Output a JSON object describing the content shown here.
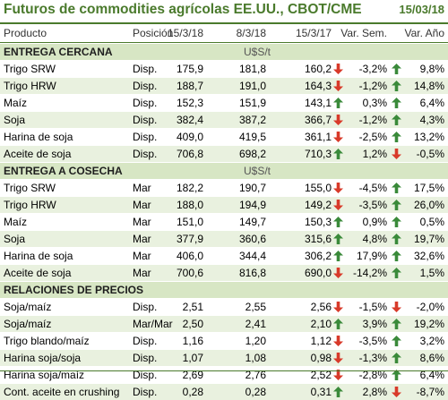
{
  "title": "Futuros de commodities agrícolas EE.UU., CBOT/CME",
  "date": "15/03/18",
  "columns": [
    "Producto",
    "Posición",
    "15/3/18",
    "8/3/18",
    "15/3/17",
    "Var. Sem.",
    "Var. Año"
  ],
  "colors": {
    "accent": "#4a7a2c",
    "up": "#3a8a3a",
    "down": "#d83a2a",
    "section_bg": "#d7e6c4",
    "alt_bg": "#e9f1df"
  },
  "sections": [
    {
      "label": "ENTREGA CERCANA",
      "unit": "U$S/t",
      "rows": [
        {
          "name": "Trigo SRW",
          "pos": "Disp.",
          "v1": "175,9",
          "v2": "181,8",
          "v3": "160,2",
          "a1": "down",
          "v4": "-3,2%",
          "a2": "up",
          "v5": "9,8%"
        },
        {
          "name": "Trigo HRW",
          "pos": "Disp.",
          "v1": "188,7",
          "v2": "191,0",
          "v3": "164,3",
          "a1": "down",
          "v4": "-1,2%",
          "a2": "up",
          "v5": "14,8%"
        },
        {
          "name": "Maíz",
          "pos": "Disp.",
          "v1": "152,3",
          "v2": "151,9",
          "v3": "143,1",
          "a1": "up",
          "v4": "0,3%",
          "a2": "up",
          "v5": "6,4%"
        },
        {
          "name": "Soja",
          "pos": "Disp.",
          "v1": "382,4",
          "v2": "387,2",
          "v3": "366,7",
          "a1": "down",
          "v4": "-1,2%",
          "a2": "up",
          "v5": "4,3%"
        },
        {
          "name": "Harina de soja",
          "pos": "Disp.",
          "v1": "409,0",
          "v2": "419,5",
          "v3": "361,1",
          "a1": "down",
          "v4": "-2,5%",
          "a2": "up",
          "v5": "13,2%"
        },
        {
          "name": "Aceite de soja",
          "pos": "Disp.",
          "v1": "706,8",
          "v2": "698,2",
          "v3": "710,3",
          "a1": "up",
          "v4": "1,2%",
          "a2": "down",
          "v5": "-0,5%"
        }
      ]
    },
    {
      "label": "ENTREGA A COSECHA",
      "unit": "U$S/t",
      "rows": [
        {
          "name": "Trigo SRW",
          "pos": "Mar",
          "v1": "182,2",
          "v2": "190,7",
          "v3": "155,0",
          "a1": "down",
          "v4": "-4,5%",
          "a2": "up",
          "v5": "17,5%"
        },
        {
          "name": "Trigo HRW",
          "pos": "Mar",
          "v1": "188,0",
          "v2": "194,9",
          "v3": "149,2",
          "a1": "down",
          "v4": "-3,5%",
          "a2": "up",
          "v5": "26,0%"
        },
        {
          "name": "Maíz",
          "pos": "Mar",
          "v1": "151,0",
          "v2": "149,7",
          "v3": "150,3",
          "a1": "up",
          "v4": "0,9%",
          "a2": "up",
          "v5": "0,5%"
        },
        {
          "name": "Soja",
          "pos": "Mar",
          "v1": "377,9",
          "v2": "360,6",
          "v3": "315,6",
          "a1": "up",
          "v4": "4,8%",
          "a2": "up",
          "v5": "19,7%"
        },
        {
          "name": "Harina de soja",
          "pos": "Mar",
          "v1": "406,0",
          "v2": "344,4",
          "v3": "306,2",
          "a1": "up",
          "v4": "17,9%",
          "a2": "up",
          "v5": "32,6%"
        },
        {
          "name": "Aceite de soja",
          "pos": "Mar",
          "v1": "700,6",
          "v2": "816,8",
          "v3": "690,0",
          "a1": "down",
          "v4": "-14,2%",
          "a2": "up",
          "v5": "1,5%"
        }
      ]
    },
    {
      "label": "RELACIONES DE PRECIOS",
      "unit": "",
      "rows": [
        {
          "name": "Soja/maíz",
          "pos": "Disp.",
          "v1": "2,51",
          "v2": "2,55",
          "v3": "2,56",
          "a1": "down",
          "v4": "-1,5%",
          "a2": "down",
          "v5": "-2,0%"
        },
        {
          "name": "Soja/maíz",
          "pos": "Mar/Mar",
          "v1": "2,50",
          "v2": "2,41",
          "v3": "2,10",
          "a1": "up",
          "v4": "3,9%",
          "a2": "up",
          "v5": "19,2%"
        },
        {
          "name": "Trigo blando/maíz",
          "pos": "Disp.",
          "v1": "1,16",
          "v2": "1,20",
          "v3": "1,12",
          "a1": "down",
          "v4": "-3,5%",
          "a2": "up",
          "v5": "3,2%"
        },
        {
          "name": "Harina soja/soja",
          "pos": "Disp.",
          "v1": "1,07",
          "v2": "1,08",
          "v3": "0,98",
          "a1": "down",
          "v4": "-1,3%",
          "a2": "up",
          "v5": "8,6%"
        },
        {
          "name": "Harina soja/maíz",
          "pos": "Disp.",
          "v1": "2,69",
          "v2": "2,76",
          "v3": "2,52",
          "a1": "down",
          "v4": "-2,8%",
          "a2": "up",
          "v5": "6,4%"
        },
        {
          "name": "Cont. aceite en crushing",
          "pos": "Disp.",
          "v1": "0,28",
          "v2": "0,28",
          "v3": "0,31",
          "a1": "up",
          "v4": "2,8%",
          "a2": "down",
          "v5": "-8,7%"
        }
      ]
    }
  ]
}
